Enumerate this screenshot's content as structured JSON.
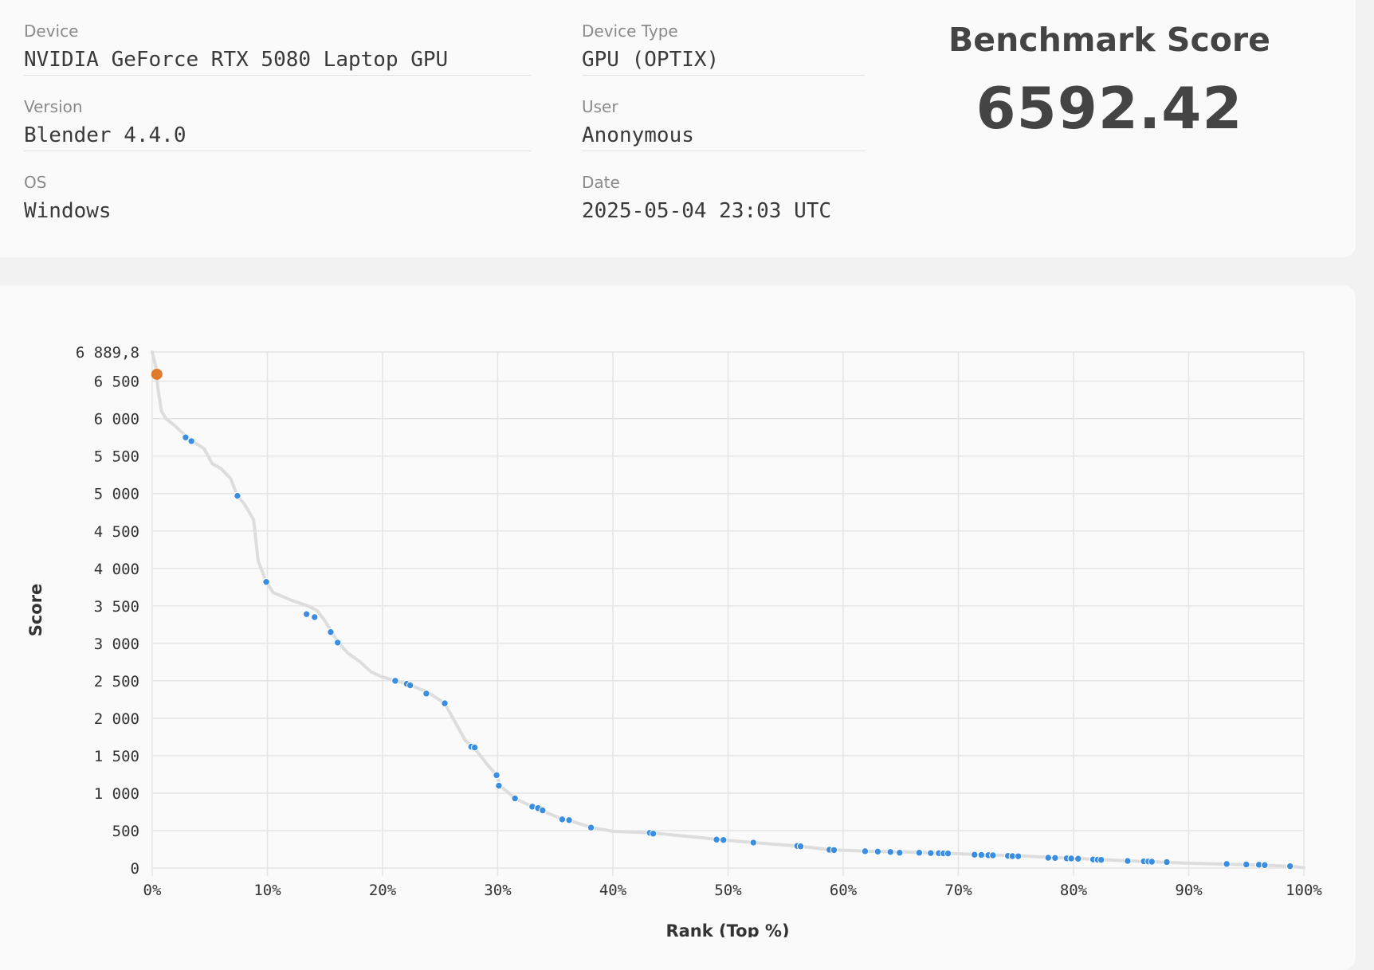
{
  "info": {
    "device": {
      "label": "Device",
      "value": "NVIDIA GeForce RTX 5080 Laptop GPU"
    },
    "version": {
      "label": "Version",
      "value": "Blender 4.4.0"
    },
    "os": {
      "label": "OS",
      "value": "Windows"
    },
    "device_type": {
      "label": "Device Type",
      "value": "GPU (OPTIX)"
    },
    "user": {
      "label": "User",
      "value": "Anonymous"
    },
    "date": {
      "label": "Date",
      "value": "2025-05-04 23:03 UTC"
    }
  },
  "score": {
    "title": "Benchmark Score",
    "value": "6592.42"
  },
  "colors": {
    "point": "#3b8de0",
    "highlight": "#e07b2a",
    "curve": "#dddddd",
    "grid": "#e5e5e5"
  },
  "chart_data": {
    "type": "scatter",
    "xlabel": "Rank (Top %)",
    "ylabel": "Score",
    "xlim": [
      0,
      100
    ],
    "ylim": [
      0,
      6889.8
    ],
    "x_ticks": [
      0,
      10,
      20,
      30,
      40,
      50,
      60,
      70,
      80,
      90,
      100
    ],
    "x_tick_labels": [
      "0%",
      "10%",
      "20%",
      "30%",
      "40%",
      "50%",
      "60%",
      "70%",
      "80%",
      "90%",
      "100%"
    ],
    "y_ticks": [
      0,
      500,
      1000,
      1500,
      2000,
      2500,
      3000,
      3500,
      4000,
      4500,
      5000,
      5500,
      6000,
      6500,
      6889.8
    ],
    "y_tick_labels": [
      "0",
      "500",
      "1 000",
      "1 500",
      "2 000",
      "2 500",
      "3 000",
      "3 500",
      "4 000",
      "4 500",
      "5 000",
      "5 500",
      "6 000",
      "6 500",
      "6 889,8"
    ],
    "grid": true,
    "highlight": {
      "x": 0.4,
      "y": 6592.42
    },
    "curve": [
      [
        0,
        6889.8
      ],
      [
        0.3,
        6700
      ],
      [
        0.5,
        6400
      ],
      [
        0.8,
        6100
      ],
      [
        1.2,
        6000
      ],
      [
        2,
        5900
      ],
      [
        3,
        5760
      ],
      [
        3.5,
        5700
      ],
      [
        4.5,
        5600
      ],
      [
        5.2,
        5400
      ],
      [
        6,
        5330
      ],
      [
        6.8,
        5200
      ],
      [
        7.4,
        4970
      ],
      [
        8,
        4860
      ],
      [
        8.8,
        4650
      ],
      [
        9.2,
        4100
      ],
      [
        9.9,
        3820
      ],
      [
        10.5,
        3680
      ],
      [
        12,
        3580
      ],
      [
        13.5,
        3500
      ],
      [
        14.3,
        3440
      ],
      [
        15,
        3300
      ],
      [
        15.6,
        3150
      ],
      [
        16.2,
        3000
      ],
      [
        17,
        2870
      ],
      [
        18,
        2760
      ],
      [
        19,
        2620
      ],
      [
        20,
        2550
      ],
      [
        21.2,
        2500
      ],
      [
        22.3,
        2450
      ],
      [
        23.9,
        2350
      ],
      [
        25.4,
        2200
      ],
      [
        26.3,
        1950
      ],
      [
        27.2,
        1700
      ],
      [
        28,
        1600
      ],
      [
        29,
        1400
      ],
      [
        29.9,
        1240
      ],
      [
        30.2,
        1100
      ],
      [
        31.5,
        930
      ],
      [
        33,
        820
      ],
      [
        33.9,
        760
      ],
      [
        35.7,
        650
      ],
      [
        36.3,
        630
      ],
      [
        38.2,
        540
      ],
      [
        40,
        490
      ],
      [
        43.3,
        470
      ],
      [
        49,
        385
      ],
      [
        49.6,
        375
      ],
      [
        52.2,
        340
      ],
      [
        56,
        295
      ],
      [
        58.9,
        245
      ],
      [
        62,
        225
      ],
      [
        66.5,
        210
      ],
      [
        70,
        190
      ],
      [
        75,
        165
      ],
      [
        80,
        130
      ],
      [
        85,
        95
      ],
      [
        90,
        65
      ],
      [
        95,
        45
      ],
      [
        98.8,
        25
      ],
      [
        100,
        5
      ]
    ],
    "points": [
      [
        2.9,
        5750
      ],
      [
        3.4,
        5700
      ],
      [
        7.4,
        4970
      ],
      [
        9.9,
        3820
      ],
      [
        13.4,
        3390
      ],
      [
        14.1,
        3350
      ],
      [
        15.5,
        3150
      ],
      [
        16.1,
        3010
      ],
      [
        21.1,
        2500
      ],
      [
        22.1,
        2460
      ],
      [
        22.4,
        2440
      ],
      [
        23.8,
        2330
      ],
      [
        25.4,
        2200
      ],
      [
        27.7,
        1620
      ],
      [
        28.0,
        1610
      ],
      [
        29.9,
        1240
      ],
      [
        30.1,
        1100
      ],
      [
        31.5,
        930
      ],
      [
        33.0,
        820
      ],
      [
        33.5,
        800
      ],
      [
        33.9,
        770
      ],
      [
        35.6,
        650
      ],
      [
        36.2,
        640
      ],
      [
        38.1,
        540
      ],
      [
        43.2,
        470
      ],
      [
        43.5,
        460
      ],
      [
        49.0,
        380
      ],
      [
        49.6,
        375
      ],
      [
        52.2,
        340
      ],
      [
        56.0,
        295
      ],
      [
        56.3,
        290
      ],
      [
        58.8,
        245
      ],
      [
        59.2,
        240
      ],
      [
        61.9,
        225
      ],
      [
        63.0,
        220
      ],
      [
        64.1,
        215
      ],
      [
        64.9,
        205
      ],
      [
        66.6,
        205
      ],
      [
        67.6,
        200
      ],
      [
        68.3,
        198
      ],
      [
        68.7,
        196
      ],
      [
        69.1,
        195
      ],
      [
        71.4,
        178
      ],
      [
        72.0,
        175
      ],
      [
        72.6,
        172
      ],
      [
        73.0,
        170
      ],
      [
        74.3,
        163
      ],
      [
        74.7,
        160
      ],
      [
        75.2,
        158
      ],
      [
        77.8,
        138
      ],
      [
        78.4,
        135
      ],
      [
        79.4,
        130
      ],
      [
        79.8,
        128
      ],
      [
        80.4,
        125
      ],
      [
        81.7,
        115
      ],
      [
        82.1,
        112
      ],
      [
        82.4,
        110
      ],
      [
        84.7,
        95
      ],
      [
        86.1,
        90
      ],
      [
        86.5,
        88
      ],
      [
        86.8,
        85
      ],
      [
        88.1,
        80
      ],
      [
        93.3,
        55
      ],
      [
        95.0,
        48
      ],
      [
        96.1,
        44
      ],
      [
        96.6,
        40
      ],
      [
        98.8,
        25
      ]
    ]
  }
}
